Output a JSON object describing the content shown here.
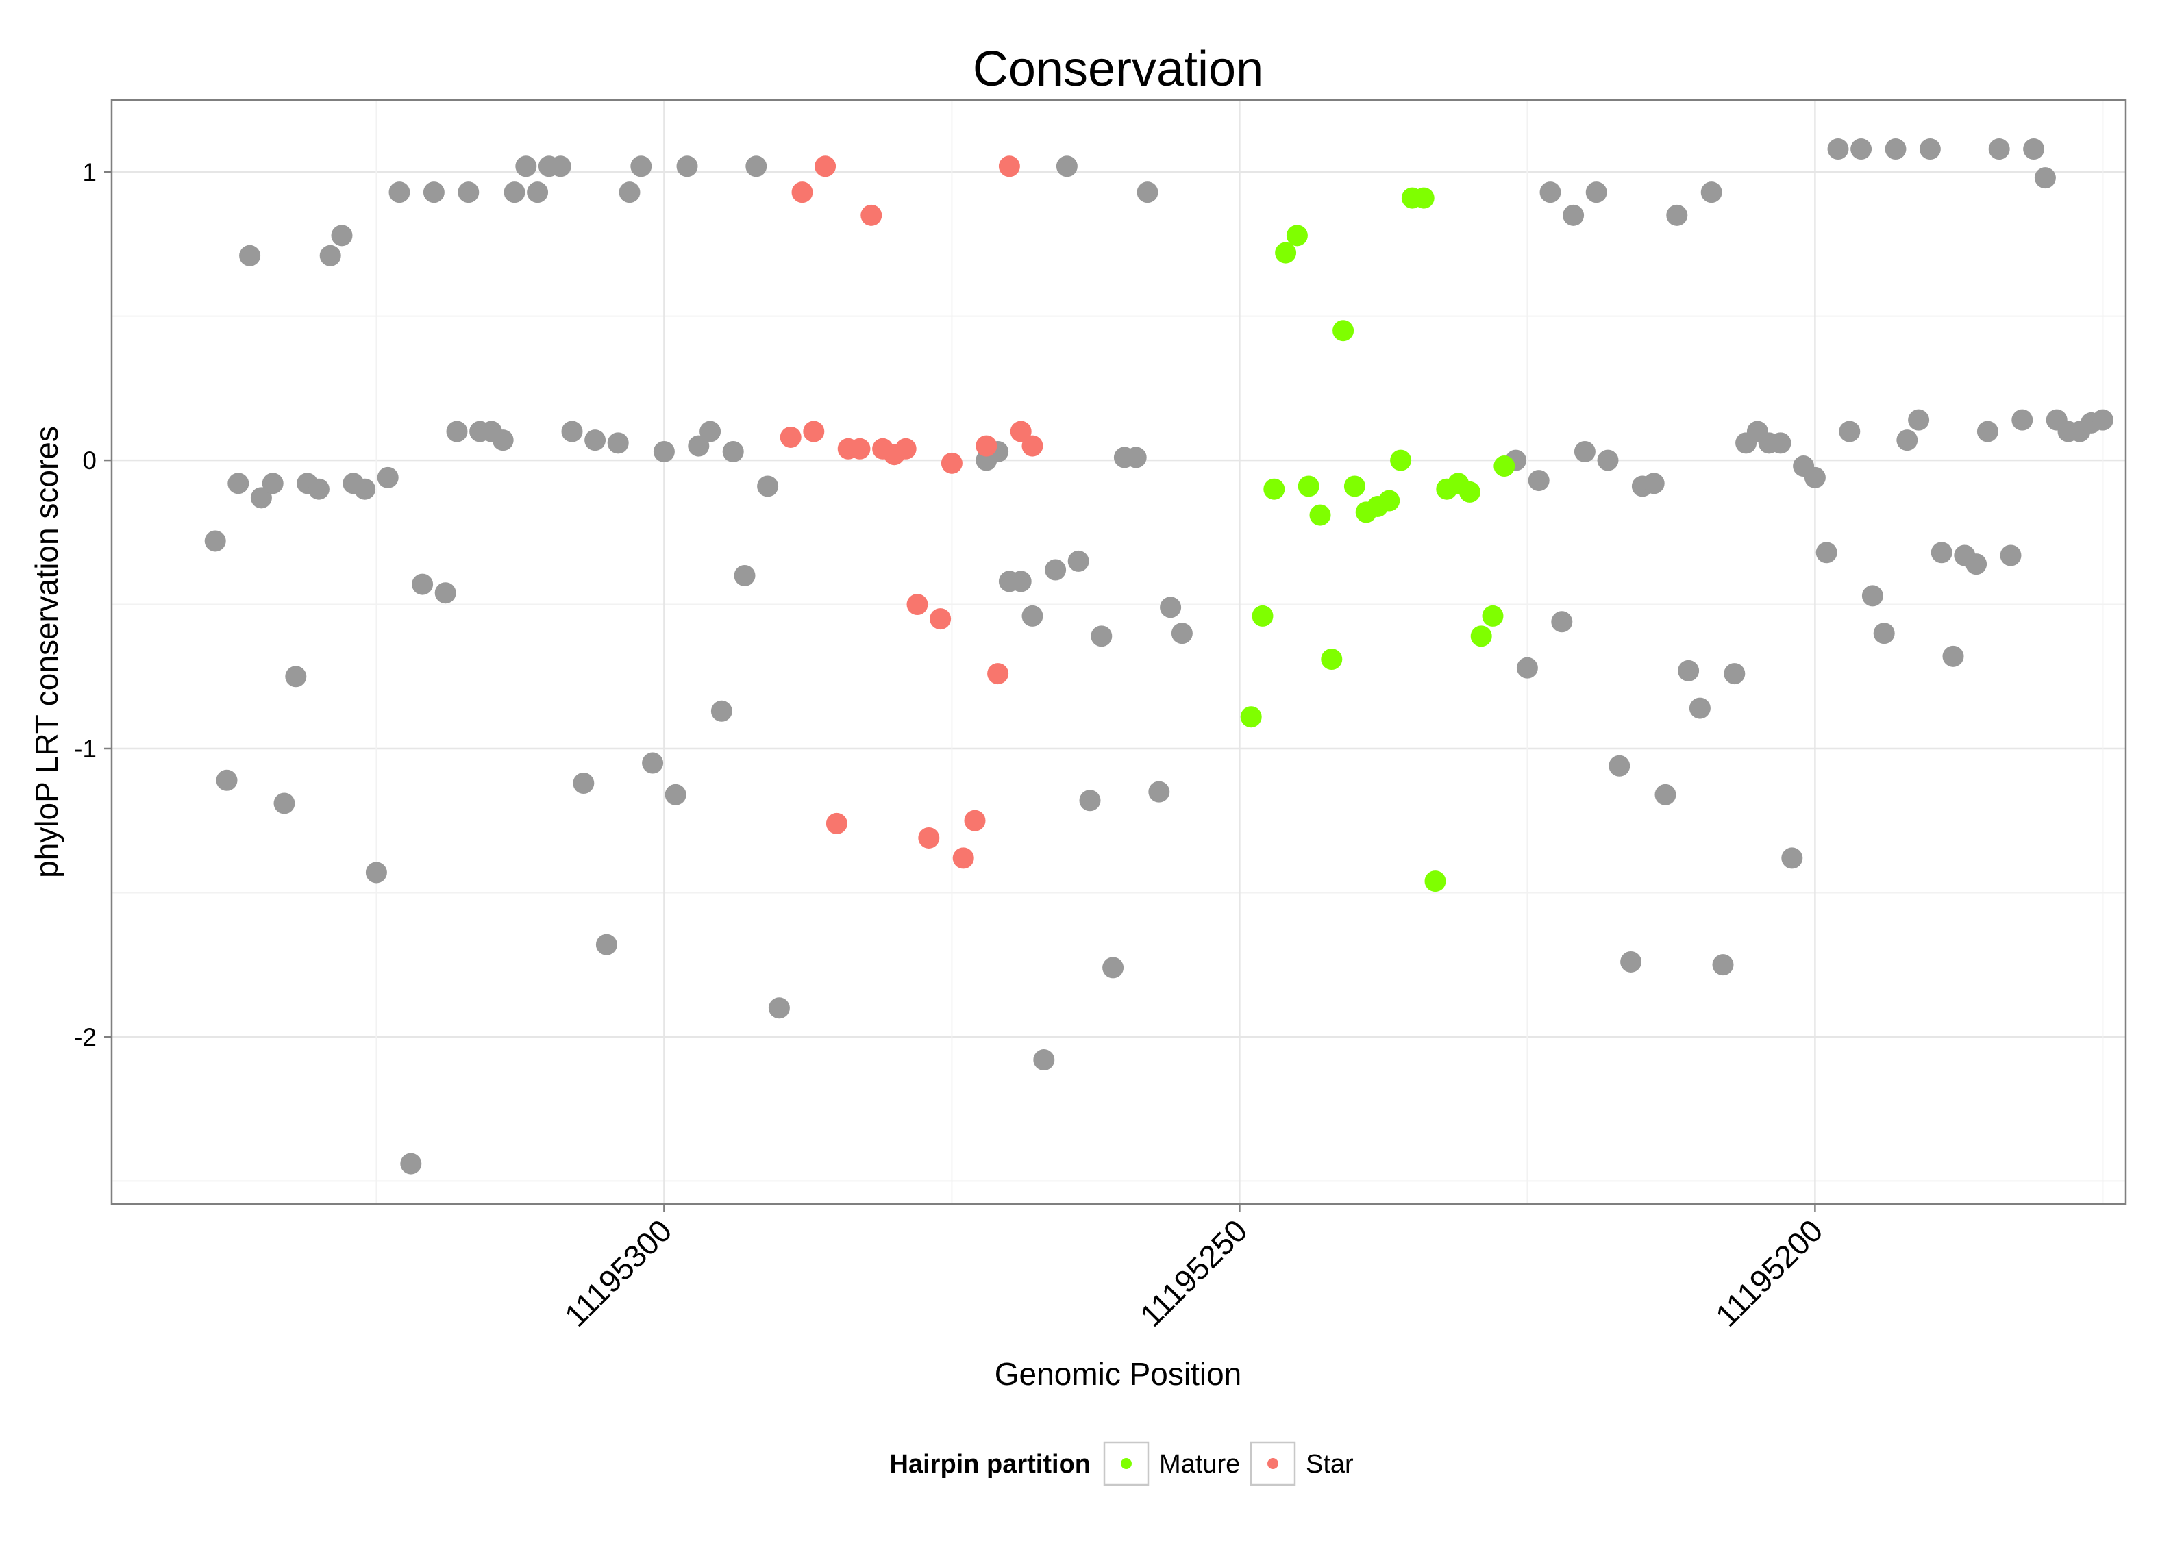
{
  "chart_data": {
    "type": "scatter",
    "title": "Conservation",
    "xlabel": "Genomic Position",
    "ylabel": "phyloP LRT conservation scores",
    "x_reversed": true,
    "xlim": [
      11195348,
      11195173
    ],
    "ylim": [
      -2.58,
      1.25
    ],
    "grid": true,
    "x_ticks": [
      11195300,
      11195250,
      11195200
    ],
    "x_tick_labels": [
      "11195300",
      "11195250",
      "11195200"
    ],
    "y_ticks": [
      1,
      0,
      -1,
      -2
    ],
    "y_tick_labels": [
      "1",
      "0",
      "-1",
      "-2"
    ],
    "legend": {
      "title": "Hairpin partition",
      "position": "bottom",
      "entries": [
        {
          "label": "Mature",
          "color": "#7fff00"
        },
        {
          "label": "Star",
          "color": "#f8766d"
        }
      ]
    },
    "series": [
      {
        "name": "",
        "color": "#999999",
        "points": [
          [
            11195339,
            -0.28
          ],
          [
            11195338,
            -1.11
          ],
          [
            11195337,
            -0.08
          ],
          [
            11195336,
            0.71
          ],
          [
            11195335,
            -0.13
          ],
          [
            11195334,
            -0.08
          ],
          [
            11195333,
            -1.19
          ],
          [
            11195332,
            -0.75
          ],
          [
            11195331,
            -0.08
          ],
          [
            11195330,
            -0.1
          ],
          [
            11195329,
            0.71
          ],
          [
            11195328,
            0.78
          ],
          [
            11195327,
            -0.08
          ],
          [
            11195326,
            -0.1
          ],
          [
            11195325,
            -1.43
          ],
          [
            11195324,
            -0.06
          ],
          [
            11195323,
            0.93
          ],
          [
            11195322,
            -2.44
          ],
          [
            11195321,
            -0.43
          ],
          [
            11195320,
            0.93
          ],
          [
            11195319,
            -0.46
          ],
          [
            11195318,
            0.1
          ],
          [
            11195317,
            0.93
          ],
          [
            11195316,
            0.1
          ],
          [
            11195315,
            0.1
          ],
          [
            11195314,
            0.07
          ],
          [
            11195313,
            0.93
          ],
          [
            11195312,
            1.02
          ],
          [
            11195311,
            0.93
          ],
          [
            11195310,
            1.02
          ],
          [
            11195309,
            1.02
          ],
          [
            11195308,
            0.1
          ],
          [
            11195307,
            -1.12
          ],
          [
            11195306,
            0.07
          ],
          [
            11195305,
            -1.68
          ],
          [
            11195304,
            0.06
          ],
          [
            11195303,
            0.93
          ],
          [
            11195302,
            1.02
          ],
          [
            11195301,
            -1.05
          ],
          [
            11195300,
            0.03
          ],
          [
            11195299,
            -1.16
          ],
          [
            11195298,
            1.02
          ],
          [
            11195297,
            0.05
          ],
          [
            11195296,
            0.1
          ],
          [
            11195295,
            -0.87
          ],
          [
            11195294,
            0.03
          ],
          [
            11195293,
            -0.4
          ],
          [
            11195292,
            1.02
          ],
          [
            11195291,
            -0.09
          ],
          [
            11195290,
            -1.9
          ],
          [
            11195272,
            0.0
          ],
          [
            11195271,
            0.03
          ],
          [
            11195270,
            -0.42
          ],
          [
            11195269,
            -0.42
          ],
          [
            11195268,
            -0.54
          ],
          [
            11195267,
            -2.08
          ],
          [
            11195266,
            -0.38
          ],
          [
            11195265,
            1.02
          ],
          [
            11195264,
            -0.35
          ],
          [
            11195263,
            -1.18
          ],
          [
            11195262,
            -0.61
          ],
          [
            11195261,
            -1.76
          ],
          [
            11195260,
            0.01
          ],
          [
            11195259,
            0.01
          ],
          [
            11195258,
            0.93
          ],
          [
            11195257,
            -1.15
          ],
          [
            11195256,
            -0.51
          ],
          [
            11195255,
            -0.6
          ],
          [
            11195226,
            0.0
          ],
          [
            11195225,
            -0.72
          ],
          [
            11195224,
            -0.07
          ],
          [
            11195223,
            0.93
          ],
          [
            11195222,
            -0.56
          ],
          [
            11195221,
            0.85
          ],
          [
            11195220,
            0.03
          ],
          [
            11195219,
            0.93
          ],
          [
            11195218,
            0.0
          ],
          [
            11195217,
            -1.06
          ],
          [
            11195216,
            -1.74
          ],
          [
            11195215,
            -0.09
          ],
          [
            11195214,
            -0.08
          ],
          [
            11195213,
            -1.16
          ],
          [
            11195212,
            0.85
          ],
          [
            11195211,
            -0.73
          ],
          [
            11195210,
            -0.86
          ],
          [
            11195209,
            0.93
          ],
          [
            11195208,
            -1.75
          ],
          [
            11195207,
            -0.74
          ],
          [
            11195206,
            0.06
          ],
          [
            11195205,
            0.1
          ],
          [
            11195204,
            0.06
          ],
          [
            11195203,
            0.06
          ],
          [
            11195202,
            -1.38
          ],
          [
            11195201,
            -0.02
          ],
          [
            11195200,
            -0.06
          ],
          [
            11195199,
            -0.32
          ],
          [
            11195198,
            1.08
          ],
          [
            11195197,
            0.1
          ],
          [
            11195196,
            1.08
          ],
          [
            11195195,
            -0.47
          ],
          [
            11195194,
            -0.6
          ],
          [
            11195193,
            1.08
          ],
          [
            11195192,
            0.07
          ],
          [
            11195191,
            0.14
          ],
          [
            11195190,
            1.08
          ],
          [
            11195189,
            -0.32
          ],
          [
            11195188,
            -0.68
          ],
          [
            11195187,
            -0.33
          ],
          [
            11195186,
            -0.36
          ],
          [
            11195185,
            0.1
          ],
          [
            11195184,
            1.08
          ],
          [
            11195183,
            -0.33
          ],
          [
            11195182,
            0.14
          ],
          [
            11195181,
            1.08
          ],
          [
            11195180,
            0.98
          ],
          [
            11195179,
            0.14
          ],
          [
            11195178,
            0.1
          ],
          [
            11195177,
            0.1
          ],
          [
            11195176,
            0.13
          ],
          [
            11195175,
            0.14
          ]
        ]
      },
      {
        "name": "Star",
        "color": "#f8766d",
        "points": [
          [
            11195289,
            0.08
          ],
          [
            11195288,
            0.93
          ],
          [
            11195287,
            0.1
          ],
          [
            11195286,
            1.02
          ],
          [
            11195285,
            -1.26
          ],
          [
            11195284,
            0.04
          ],
          [
            11195283,
            0.04
          ],
          [
            11195282,
            0.85
          ],
          [
            11195281,
            0.04
          ],
          [
            11195280,
            0.02
          ],
          [
            11195279,
            0.04
          ],
          [
            11195278,
            -0.5
          ],
          [
            11195277,
            -1.31
          ],
          [
            11195276,
            -0.55
          ],
          [
            11195275,
            -0.01
          ],
          [
            11195274,
            -1.38
          ],
          [
            11195273,
            -1.25
          ],
          [
            11195272,
            0.05
          ],
          [
            11195271,
            -0.74
          ],
          [
            11195270,
            1.02
          ],
          [
            11195269,
            0.1
          ],
          [
            11195268,
            0.05
          ]
        ]
      },
      {
        "name": "Mature",
        "color": "#7fff00",
        "points": [
          [
            11195249,
            -0.89
          ],
          [
            11195248,
            -0.54
          ],
          [
            11195247,
            -0.1
          ],
          [
            11195246,
            0.72
          ],
          [
            11195245,
            0.78
          ],
          [
            11195244,
            -0.09
          ],
          [
            11195243,
            -0.19
          ],
          [
            11195242,
            -0.69
          ],
          [
            11195241,
            0.45
          ],
          [
            11195240,
            -0.09
          ],
          [
            11195239,
            -0.18
          ],
          [
            11195238,
            -0.16
          ],
          [
            11195237,
            -0.14
          ],
          [
            11195236,
            0.0
          ],
          [
            11195235,
            0.91
          ],
          [
            11195234,
            0.91
          ],
          [
            11195233,
            -1.46
          ],
          [
            11195232,
            -0.1
          ],
          [
            11195231,
            -0.08
          ],
          [
            11195230,
            -0.11
          ],
          [
            11195229,
            -0.61
          ],
          [
            11195228,
            -0.54
          ],
          [
            11195227,
            -0.02
          ]
        ]
      }
    ]
  }
}
